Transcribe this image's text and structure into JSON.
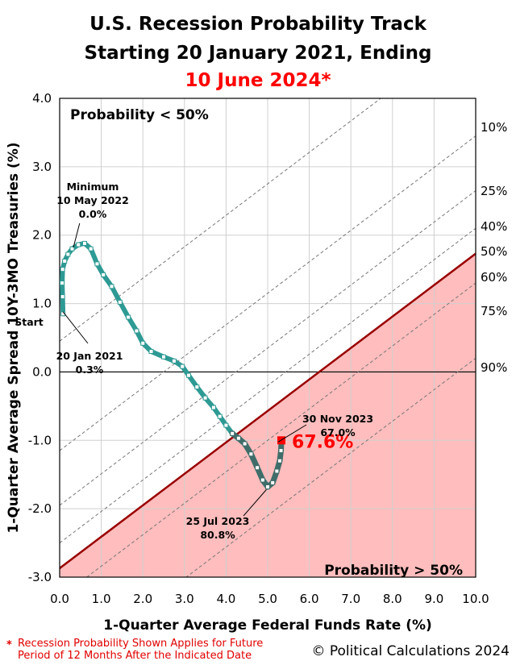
{
  "title": {
    "line1": "U.S. Recession Probability Track",
    "line2": "Starting 20 January 2021, Ending",
    "line3": "10 June 2024*",
    "line3_color": "#ff0000"
  },
  "chart_data": {
    "type": "scatter",
    "xlabel": "1-Quarter Average Federal Funds Rate (%)",
    "ylabel": "1-Quarter Average Spread 10Y-3MO Treasuries (%)",
    "xlim": [
      0,
      10
    ],
    "ylim": [
      -3,
      4
    ],
    "xticks": [
      "0.0",
      "1.0",
      "2.0",
      "3.0",
      "4.0",
      "5.0",
      "6.0",
      "7.0",
      "8.0",
      "9.0",
      "10.0"
    ],
    "yticks": [
      "4.0",
      "3.0",
      "2.0",
      "1.0",
      "0.0",
      "-1.0",
      "-2.0",
      "-3.0"
    ],
    "grid": true,
    "colors": {
      "track": "#2e9a94",
      "track_recent": "#3f6d6a",
      "threshold": "#990000",
      "danger_fill": "#ffbdbd",
      "current": "#ff0000"
    },
    "region_labels": {
      "low": "Probability < 50%",
      "high": "Probability > 50%"
    },
    "probability_lines": [
      {
        "label": "10%",
        "y_at_x0": 0.45,
        "slope": 0.46
      },
      {
        "label": "25%",
        "y_at_x0": -1.15,
        "slope": 0.46
      },
      {
        "label": "40%",
        "y_at_x0": -1.95,
        "slope": 0.46
      },
      {
        "label": "50%",
        "y_at_x0": -2.87,
        "slope": 0.46,
        "threshold": true
      },
      {
        "label": "60%",
        "y_at_x0": -2.5,
        "slope": 0.46
      },
      {
        "label": "75%",
        "y_at_x0": -3.3,
        "slope": 0.46
      },
      {
        "label": "90%",
        "y_at_x0": -4.4,
        "slope": 0.46
      }
    ],
    "track": [
      {
        "x": 0.08,
        "y": 0.85
      },
      {
        "x": 0.07,
        "y": 1.1
      },
      {
        "x": 0.06,
        "y": 1.3
      },
      {
        "x": 0.07,
        "y": 1.5
      },
      {
        "x": 0.12,
        "y": 1.62
      },
      {
        "x": 0.2,
        "y": 1.72
      },
      {
        "x": 0.3,
        "y": 1.8
      },
      {
        "x": 0.45,
        "y": 1.86
      },
      {
        "x": 0.6,
        "y": 1.88
      },
      {
        "x": 0.75,
        "y": 1.8
      },
      {
        "x": 0.9,
        "y": 1.58
      },
      {
        "x": 1.05,
        "y": 1.42
      },
      {
        "x": 1.25,
        "y": 1.25
      },
      {
        "x": 1.45,
        "y": 1.02
      },
      {
        "x": 1.65,
        "y": 0.8
      },
      {
        "x": 1.85,
        "y": 0.6
      },
      {
        "x": 2.0,
        "y": 0.42
      },
      {
        "x": 2.2,
        "y": 0.3
      },
      {
        "x": 2.5,
        "y": 0.22
      },
      {
        "x": 2.75,
        "y": 0.16
      },
      {
        "x": 2.95,
        "y": 0.08
      },
      {
        "x": 3.1,
        "y": -0.05
      },
      {
        "x": 3.3,
        "y": -0.22
      },
      {
        "x": 3.5,
        "y": -0.38
      },
      {
        "x": 3.7,
        "y": -0.52
      },
      {
        "x": 3.85,
        "y": -0.65
      },
      {
        "x": 4.0,
        "y": -0.78
      },
      {
        "x": 4.15,
        "y": -0.9
      },
      {
        "x": 4.3,
        "y": -0.97
      },
      {
        "x": 4.45,
        "y": -1.05
      },
      {
        "x": 4.6,
        "y": -1.2
      },
      {
        "x": 4.75,
        "y": -1.4
      },
      {
        "x": 4.88,
        "y": -1.58
      },
      {
        "x": 5.0,
        "y": -1.68
      },
      {
        "x": 5.12,
        "y": -1.62
      },
      {
        "x": 5.22,
        "y": -1.45
      },
      {
        "x": 5.29,
        "y": -1.3
      },
      {
        "x": 5.32,
        "y": -1.15
      },
      {
        "x": 5.33,
        "y": -1.02
      }
    ],
    "current": {
      "x": 5.33,
      "y": -1.0,
      "label": "67.6%"
    },
    "annotations": [
      {
        "text": [
          "Minimum",
          "10 May 2022",
          "0.0%"
        ]
      },
      {
        "text": [
          "Start"
        ]
      },
      {
        "text": [
          "20 Jan 2021",
          "0.3%"
        ]
      },
      {
        "text": [
          "30 Nov 2023",
          "67.0%"
        ]
      },
      {
        "text": [
          "25 Jul 2023",
          "80.8%"
        ]
      }
    ]
  },
  "footnote": {
    "star": "*",
    "line1": "Recession Probability Shown Applies for Future",
    "line2": "Period of 12 Months After the Indicated Date"
  },
  "copyright": "© Political Calculations 2024"
}
